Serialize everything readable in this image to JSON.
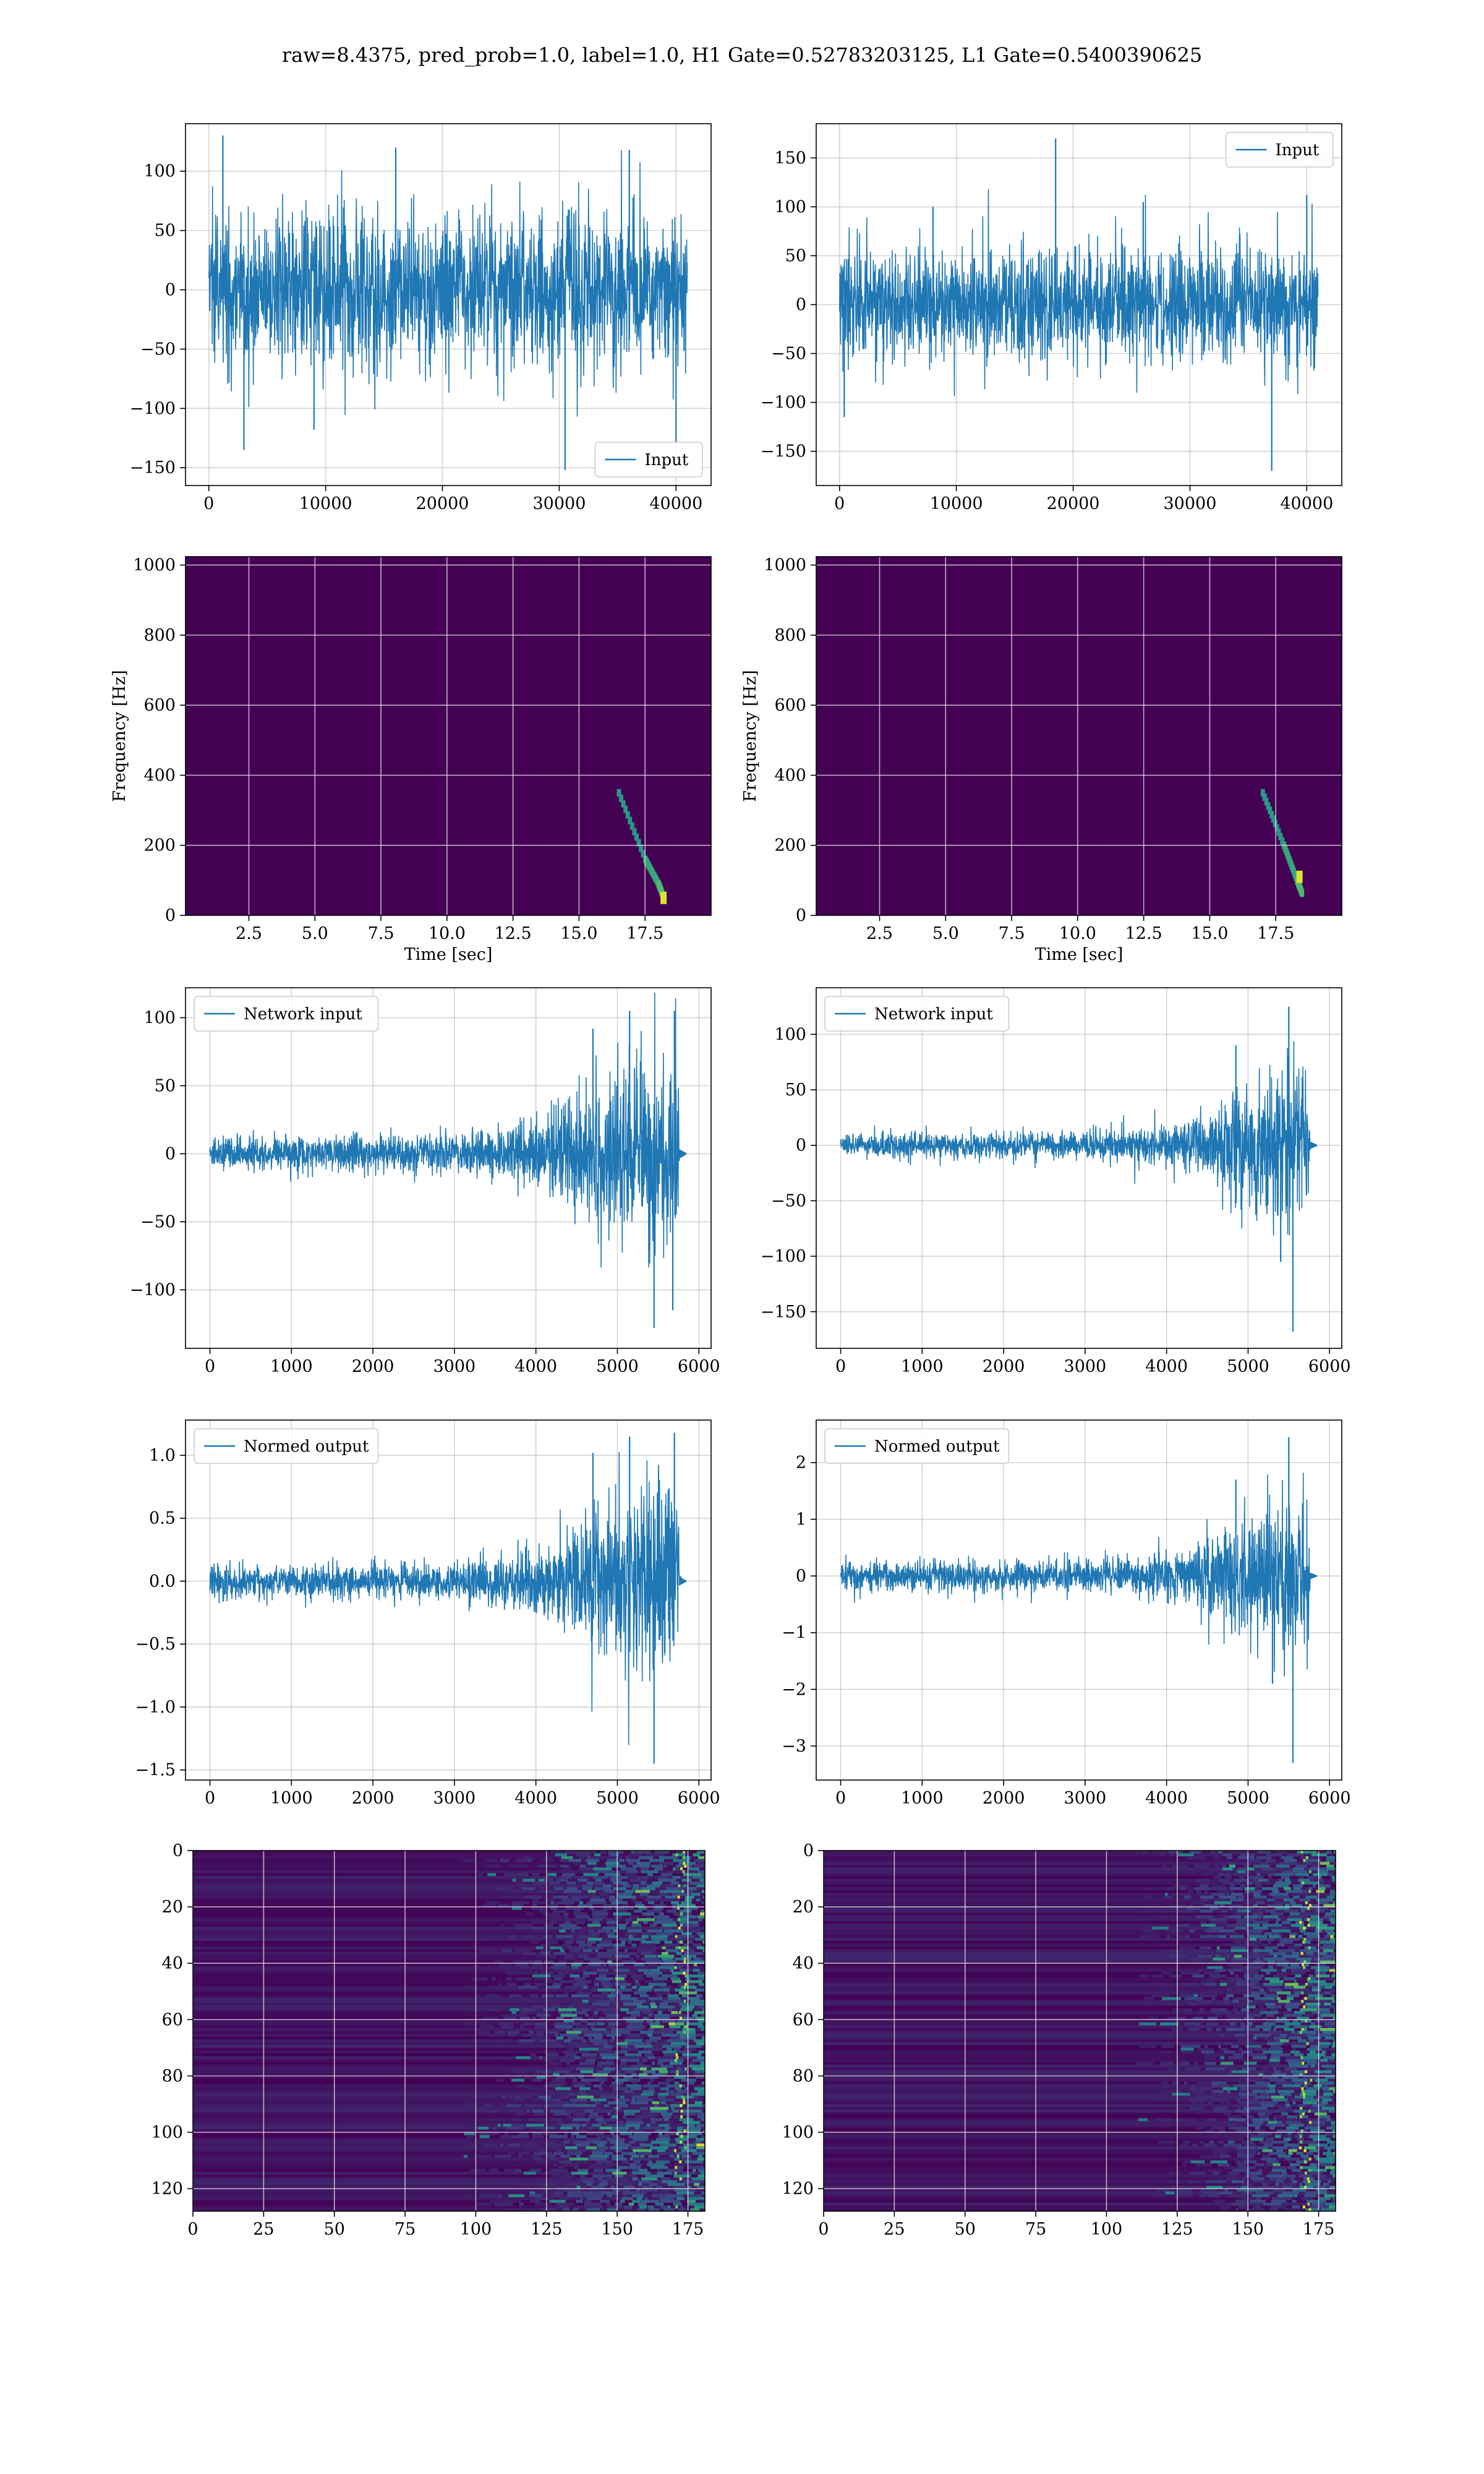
{
  "figure": {
    "suptitle": "raw=8.4375, pred_prob=1.0, label=1.0, H1 Gate=0.52783203125, L1 Gate=0.5400390625",
    "colors": {
      "line": "#1f77b4",
      "viridis_low": "#440154",
      "viridis_mid": "#21918c",
      "viridis_high": "#fde725",
      "grid": "#b0b0b0"
    }
  },
  "chart_data": [
    {
      "type": "line",
      "row": 1,
      "col": 1,
      "title": "",
      "xlabel": "",
      "ylabel": "",
      "xlim": [
        -2000,
        43000
      ],
      "ylim": [
        -165,
        140
      ],
      "xticks": [
        0,
        10000,
        20000,
        30000,
        40000
      ],
      "yticks": [
        -150,
        -100,
        -50,
        0,
        50,
        100
      ],
      "grid": true,
      "legend": {
        "placement": "lower-right",
        "entries": [
          "Input"
        ]
      },
      "series": [
        {
          "name": "Input",
          "x_range": [
            0,
            40960
          ],
          "envelope_p95": 75,
          "peaks": [
            [
              1200,
              130
            ],
            [
              3000,
              -135
            ],
            [
              9000,
              -118
            ],
            [
              16000,
              120
            ],
            [
              30500,
              -152
            ],
            [
              36000,
              118
            ],
            [
              40000,
              -130
            ]
          ]
        }
      ]
    },
    {
      "type": "line",
      "row": 1,
      "col": 2,
      "title": "",
      "xlabel": "",
      "ylabel": "",
      "xlim": [
        -2000,
        43000
      ],
      "ylim": [
        -185,
        185
      ],
      "xticks": [
        0,
        10000,
        20000,
        30000,
        40000
      ],
      "yticks": [
        -150,
        -100,
        -50,
        0,
        50,
        100,
        150
      ],
      "grid": true,
      "legend": {
        "placement": "upper-right",
        "entries": [
          "Input"
        ]
      },
      "series": [
        {
          "name": "Input",
          "x_range": [
            0,
            40960
          ],
          "envelope_p95": 65,
          "peaks": [
            [
              400,
              -115
            ],
            [
              8000,
              100
            ],
            [
              18500,
              170
            ],
            [
              26000,
              105
            ],
            [
              37000,
              -170
            ],
            [
              40000,
              112
            ]
          ]
        }
      ]
    },
    {
      "type": "heatmap",
      "row": 2,
      "col": 1,
      "title": "",
      "xlabel": "Time [sec]",
      "ylabel": "Frequency [Hz]",
      "xlim": [
        0.1,
        20
      ],
      "ylim": [
        0,
        1024
      ],
      "xticks": [
        2.5,
        5.0,
        7.5,
        10.0,
        12.5,
        15.0,
        17.5
      ],
      "yticks": [
        0,
        200,
        400,
        600,
        800,
        1000
      ],
      "grid": true,
      "colormap": "viridis",
      "features": {
        "chirp_track": [
          [
            16.5,
            350
          ],
          [
            17.5,
            160
          ],
          [
            18.0,
            90
          ],
          [
            18.2,
            50
          ]
        ],
        "bright_spot": [
          18.2,
          50
        ]
      }
    },
    {
      "type": "heatmap",
      "row": 2,
      "col": 2,
      "title": "",
      "xlabel": "Time [sec]",
      "ylabel": "Frequency [Hz]",
      "xlim": [
        0.1,
        20
      ],
      "ylim": [
        0,
        1024
      ],
      "xticks": [
        2.5,
        5.0,
        7.5,
        10.0,
        12.5,
        15.0,
        17.5
      ],
      "yticks": [
        0,
        200,
        400,
        600,
        800,
        1000
      ],
      "grid": true,
      "colormap": "viridis",
      "features": {
        "chirp_track": [
          [
            17.0,
            350
          ],
          [
            17.8,
            200
          ],
          [
            18.3,
            100
          ],
          [
            18.5,
            60
          ]
        ],
        "bright_spot": [
          18.4,
          110
        ]
      }
    },
    {
      "type": "line",
      "row": 3,
      "col": 1,
      "title": "",
      "xlabel": "",
      "ylabel": "",
      "xlim": [
        -300,
        6150
      ],
      "ylim": [
        -143,
        122
      ],
      "xticks": [
        0,
        1000,
        2000,
        3000,
        4000,
        5000,
        6000
      ],
      "yticks": [
        -100,
        -50,
        0,
        50,
        100
      ],
      "grid": true,
      "legend": {
        "placement": "upper-left",
        "entries": [
          "Network input"
        ]
      },
      "series": [
        {
          "name": "Network input",
          "x_range": [
            0,
            5800
          ],
          "envelope": [
            [
              0,
              15
            ],
            [
              3000,
              17
            ],
            [
              4000,
              28
            ],
            [
              4600,
              55
            ],
            [
              5000,
              75
            ],
            [
              5500,
              90
            ],
            [
              5750,
              80
            ],
            [
              5760,
              3
            ]
          ],
          "peaks": [
            [
              4700,
              92
            ],
            [
              5150,
              105
            ],
            [
              5450,
              -128
            ],
            [
              5700,
              105
            ],
            [
              5680,
              -115
            ]
          ]
        }
      ]
    },
    {
      "type": "line",
      "row": 3,
      "col": 2,
      "title": "",
      "xlabel": "",
      "ylabel": "",
      "xlim": [
        -300,
        6150
      ],
      "ylim": [
        -183,
        142
      ],
      "xticks": [
        0,
        1000,
        2000,
        3000,
        4000,
        5000,
        6000
      ],
      "yticks": [
        -150,
        -100,
        -50,
        0,
        50,
        100
      ],
      "grid": true,
      "legend": {
        "placement": "upper-left",
        "entries": [
          "Network input"
        ]
      },
      "series": [
        {
          "name": "Network input",
          "x_range": [
            0,
            5800
          ],
          "envelope": [
            [
              0,
              12
            ],
            [
              3000,
              14
            ],
            [
              4000,
              22
            ],
            [
              4600,
              40
            ],
            [
              5000,
              60
            ],
            [
              5500,
              85
            ],
            [
              5750,
              70
            ],
            [
              5760,
              3
            ]
          ],
          "peaks": [
            [
              4850,
              90
            ],
            [
              5500,
              125
            ],
            [
              5550,
              -168
            ],
            [
              5400,
              -105
            ]
          ]
        }
      ]
    },
    {
      "type": "line",
      "row": 4,
      "col": 1,
      "title": "",
      "xlabel": "",
      "ylabel": "",
      "xlim": [
        -300,
        6150
      ],
      "ylim": [
        -1.58,
        1.28
      ],
      "xticks": [
        0,
        1000,
        2000,
        3000,
        4000,
        5000,
        6000
      ],
      "yticks": [
        -1.5,
        -1.0,
        -0.5,
        0.0,
        0.5,
        1.0
      ],
      "grid": true,
      "legend": {
        "placement": "upper-left",
        "entries": [
          "Normed output"
        ]
      },
      "series": [
        {
          "name": "Normed output",
          "x_range": [
            0,
            5800
          ],
          "envelope": [
            [
              0,
              0.15
            ],
            [
              3000,
              0.17
            ],
            [
              4000,
              0.28
            ],
            [
              4600,
              0.55
            ],
            [
              5000,
              0.8
            ],
            [
              5500,
              1.0
            ],
            [
              5750,
              0.85
            ],
            [
              5760,
              0.03
            ]
          ],
          "peaks": [
            [
              4700,
              1.02
            ],
            [
              5150,
              1.15
            ],
            [
              5450,
              -1.45
            ],
            [
              5700,
              1.18
            ]
          ]
        }
      ]
    },
    {
      "type": "line",
      "row": 4,
      "col": 2,
      "title": "",
      "xlabel": "",
      "ylabel": "",
      "xlim": [
        -300,
        6150
      ],
      "ylim": [
        -3.6,
        2.75
      ],
      "xticks": [
        0,
        1000,
        2000,
        3000,
        4000,
        5000,
        6000
      ],
      "yticks": [
        -3,
        -2,
        -1,
        0,
        1,
        2
      ],
      "grid": true,
      "legend": {
        "placement": "upper-left",
        "entries": [
          "Normed output"
        ]
      },
      "series": [
        {
          "name": "Normed output",
          "x_range": [
            0,
            5800
          ],
          "envelope": [
            [
              0,
              0.3
            ],
            [
              3000,
              0.32
            ],
            [
              4000,
              0.5
            ],
            [
              4600,
              0.9
            ],
            [
              5000,
              1.3
            ],
            [
              5500,
              1.8
            ],
            [
              5750,
              1.4
            ],
            [
              5760,
              0.05
            ]
          ],
          "peaks": [
            [
              4850,
              1.7
            ],
            [
              5500,
              2.45
            ],
            [
              5550,
              -3.3
            ],
            [
              5300,
              -1.9
            ]
          ]
        }
      ]
    },
    {
      "type": "heatmap",
      "row": 5,
      "col": 1,
      "title": "",
      "xlabel": "",
      "ylabel": "",
      "xlim": [
        0,
        181
      ],
      "ylim": [
        128,
        0
      ],
      "xticks": [
        0,
        25,
        50,
        75,
        100,
        125,
        150,
        175
      ],
      "yticks": [
        0,
        20,
        40,
        60,
        80,
        100,
        120
      ],
      "grid": true,
      "colormap": "viridis",
      "features": {
        "activity_onset_x": 100,
        "bright_column_x": 172
      }
    },
    {
      "type": "heatmap",
      "row": 5,
      "col": 2,
      "title": "",
      "xlabel": "",
      "ylabel": "",
      "xlim": [
        0,
        181
      ],
      "ylim": [
        128,
        0
      ],
      "xticks": [
        0,
        25,
        50,
        75,
        100,
        125,
        150,
        175
      ],
      "yticks": [
        0,
        20,
        40,
        60,
        80,
        100,
        120
      ],
      "grid": true,
      "colormap": "viridis",
      "features": {
        "activity_onset_x": 115,
        "bright_column_x": 170
      }
    }
  ]
}
